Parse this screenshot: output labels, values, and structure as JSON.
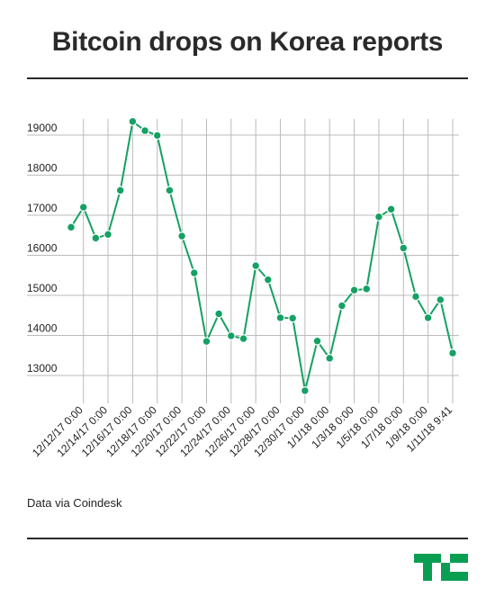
{
  "title": "Bitcoin drops on Korea reports",
  "source": "Data via Coindesk",
  "colors": {
    "line": "#14a163",
    "text": "#222222",
    "grid": "#bbbbbb",
    "logo": "#0a9e53"
  },
  "chart_data": {
    "type": "line",
    "title": "Bitcoin drops on Korea reports",
    "xlabel": "",
    "ylabel": "",
    "ylim": [
      12500,
      19600
    ],
    "yticks": [
      13000,
      14000,
      15000,
      16000,
      17000,
      18000,
      19000
    ],
    "xtick_labels": [
      "12/12/17 0:00",
      "12/14/17 0:00",
      "12/16/17 0:00",
      "12/18/17 0:00",
      "12/20/17 0:00",
      "12/22/17 0:00",
      "12/24/17 0:00",
      "12/26/17 0:00",
      "12/28/17 0:00",
      "12/30/17 0:00",
      "1/1/18 0:00",
      "1/3/18 0:00",
      "1/5/18 0:00",
      "1/7/18 0:00",
      "1/9/18 0:00",
      "1/11/18 9:41"
    ],
    "grid": true,
    "series": [
      {
        "values": [
          16700,
          17200,
          16430,
          16520,
          17620,
          19340,
          19110,
          18990,
          17620,
          16480,
          15560,
          13850,
          14540,
          13990,
          13920,
          15740,
          15390,
          14440,
          14430,
          12620,
          13860,
          13430,
          14740,
          15130,
          15160,
          16960,
          17150,
          16180,
          14970,
          14440,
          14890,
          13560
        ]
      }
    ]
  }
}
